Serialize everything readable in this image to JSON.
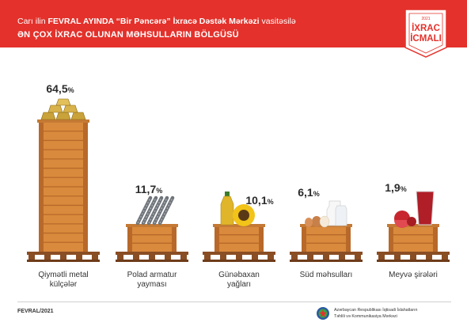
{
  "header": {
    "line1_pre": "Carı ilin ",
    "line1_bold": "FEVRAL AYINDA “Bir Pəncərə” İxracə Dəstək Mərkəzi",
    "line1_post": " vasitəsilə",
    "line2": "ƏN ÇOX İXRAC OLUNAN MƏHSULLARIN BÖLGÜSÜ"
  },
  "badge": {
    "top": "İXRAC",
    "bottom": "İCMALI",
    "year_small": "2021"
  },
  "footer": {
    "date": "FEVRAL/2021",
    "org_line1": "Azərbaycan Respublikası İqtisadi İslahatların",
    "org_line2": "Təhlili və Kommunikasiya Mərkəzi"
  },
  "colors": {
    "brand_red": "#e4312b",
    "crate_orange": "#d98a3c",
    "crate_dark": "#b8692a",
    "pallet_brown": "#8a4e24"
  },
  "chart_data": {
    "type": "bar",
    "title": "ƏN ÇOX İXRAC OLUNAN MƏHSULLARIN BÖLGÜSÜ",
    "unit": "%",
    "categories": [
      [
        "Qiymətli metal",
        "külçələr"
      ],
      [
        "Polad armatur",
        "yayması"
      ],
      [
        "Günəbaxan",
        "yağları"
      ],
      [
        "Süd məhsulları"
      ],
      [
        "Meyvə şirələri"
      ]
    ],
    "values": [
      64.5,
      11.7,
      10.1,
      6.1,
      1.9
    ],
    "value_labels": [
      "64,5",
      "11,7",
      "10,1",
      "6,1",
      "1,9"
    ],
    "icons": [
      "gold-bars-icon",
      "steel-rebar-icon",
      "sunflower-oil-icon",
      "dairy-icon",
      "fruit-juice-icon"
    ]
  }
}
